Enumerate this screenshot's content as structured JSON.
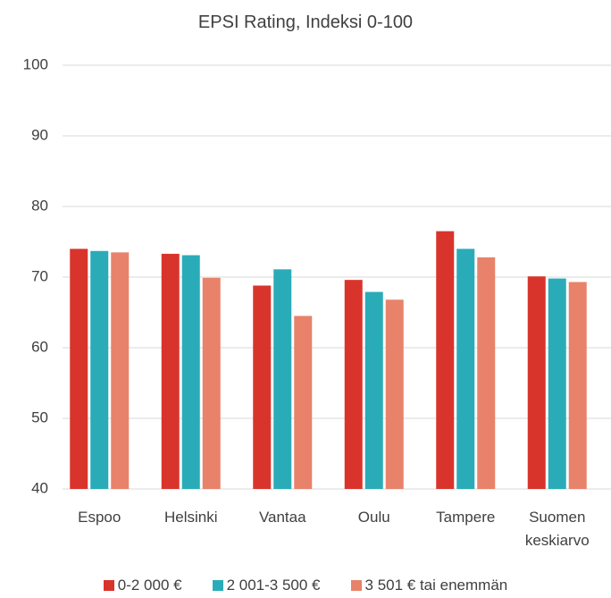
{
  "chart_data": {
    "type": "bar",
    "subtitle": "EPSI Rating, Indeksi 0-100",
    "categories": [
      "Espoo",
      "Helsinki",
      "Vantaa",
      "Oulu",
      "Tampere",
      "Suomen keskiarvo"
    ],
    "series": [
      {
        "name": "0-2 000 €",
        "color": "#d9342b",
        "values": [
          74.0,
          73.3,
          68.8,
          69.6,
          76.5,
          70.1
        ]
      },
      {
        "name": "2 001-3 500 €",
        "color": "#2aacb8",
        "values": [
          73.7,
          73.1,
          71.1,
          67.9,
          74.0,
          69.8
        ]
      },
      {
        "name": "3 501 € tai enemmän",
        "color": "#e8826a",
        "values": [
          73.5,
          69.9,
          64.5,
          66.8,
          72.8,
          69.3
        ]
      }
    ],
    "ylim": [
      40,
      100
    ],
    "yticks": [
      40,
      50,
      60,
      70,
      80,
      90,
      100
    ],
    "grid": true,
    "legend": "bottom"
  }
}
